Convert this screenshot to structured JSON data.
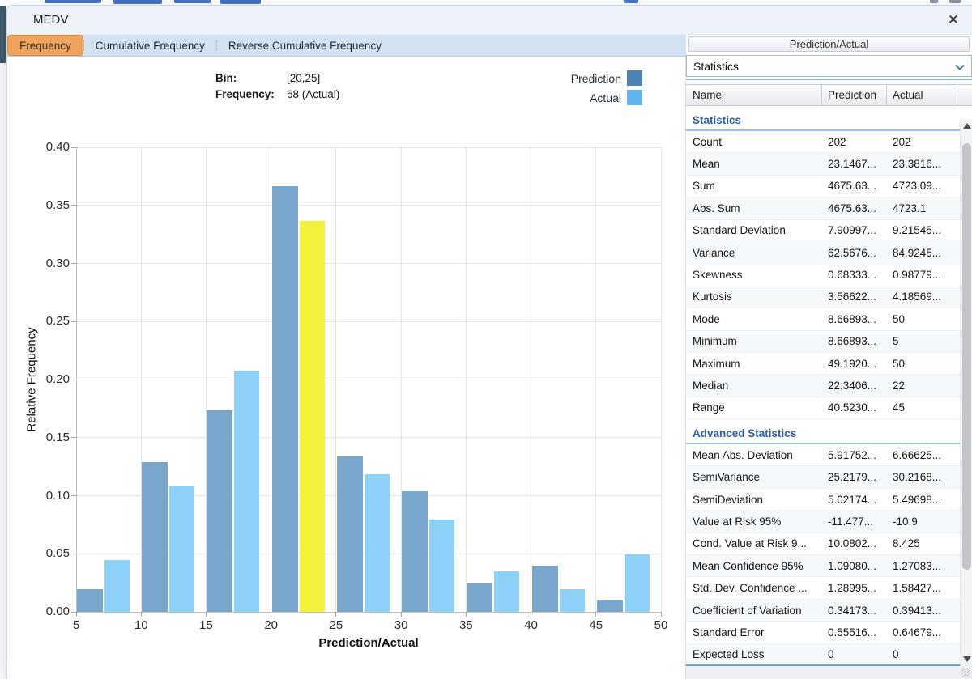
{
  "window": {
    "title": "MEDV",
    "close_glyph": "✕"
  },
  "tabs": [
    {
      "label": "Frequency",
      "selected": true
    },
    {
      "label": "Cumulative Frequency",
      "selected": false
    },
    {
      "label": "Reverse Cumulative Frequency",
      "selected": false
    }
  ],
  "tooltip": {
    "bin_label": "Bin:",
    "bin_value": "[20,25]",
    "freq_label": "Frequency:",
    "freq_value": "68 (Actual)"
  },
  "legend": [
    {
      "label": "Prediction",
      "color": "#4d82b4"
    },
    {
      "label": "Actual",
      "color": "#60b4f2"
    }
  ],
  "chart_data": {
    "type": "bar",
    "title": "",
    "xlabel": "Prediction/Actual",
    "ylabel": "Relative Frequency",
    "xlim": [
      5,
      50
    ],
    "ylim": [
      0,
      0.4
    ],
    "x_ticks": [
      5,
      10,
      15,
      20,
      25,
      30,
      35,
      40,
      45,
      50
    ],
    "y_ticks": [
      0.0,
      0.05,
      0.1,
      0.15,
      0.2,
      0.25,
      0.3,
      0.35,
      0.4
    ],
    "grid": true,
    "bins": [
      [
        5,
        10
      ],
      [
        10,
        15
      ],
      [
        15,
        20
      ],
      [
        20,
        25
      ],
      [
        25,
        30
      ],
      [
        30,
        35
      ],
      [
        35,
        40
      ],
      [
        40,
        45
      ],
      [
        45,
        50
      ]
    ],
    "series": [
      {
        "name": "Prediction",
        "color": "#78a6cc",
        "values": [
          0.0198,
          0.1287,
          0.1733,
          0.3663,
          0.1337,
          0.104,
          0.0248,
          0.0396,
          0.0099
        ]
      },
      {
        "name": "Actual",
        "color": "#8ed1f8",
        "values": [
          0.0446,
          0.1089,
          0.2079,
          0.3366,
          0.1188,
          0.0792,
          0.0347,
          0.0198,
          0.0495
        ]
      }
    ],
    "highlight": {
      "series": "Actual",
      "bin": [
        20,
        25
      ],
      "bin_index": 3,
      "value": 0.3366,
      "frequency": 68,
      "color": "#f2f23a"
    }
  },
  "panel": {
    "header": "Prediction/Actual",
    "dropdown_value": "Statistics",
    "columns": [
      "Name",
      "Prediction",
      "Actual"
    ],
    "sections": [
      {
        "title": "Statistics",
        "rows": [
          [
            "Count",
            "202",
            "202"
          ],
          [
            "Mean",
            "23.1467...",
            "23.3816..."
          ],
          [
            "Sum",
            "4675.63...",
            "4723.09..."
          ],
          [
            "Abs. Sum",
            "4675.63...",
            "4723.1"
          ],
          [
            "Standard Deviation",
            "7.90997...",
            "9.21545..."
          ],
          [
            "Variance",
            "62.5676...",
            "84.9245..."
          ],
          [
            "Skewness",
            "0.68333...",
            "0.98779..."
          ],
          [
            "Kurtosis",
            "3.56622...",
            "4.18569..."
          ],
          [
            "Mode",
            "8.66893...",
            "50"
          ],
          [
            "Minimum",
            "8.66893...",
            "5"
          ],
          [
            "Maximum",
            "49.1920...",
            "50"
          ],
          [
            "Median",
            "22.3406...",
            "22"
          ],
          [
            "Range",
            "40.5230...",
            "45"
          ]
        ]
      },
      {
        "title": "Advanced Statistics",
        "rows": [
          [
            "Mean Abs. Deviation",
            "5.91752...",
            "6.66625..."
          ],
          [
            "SemiVariance",
            "25.2179...",
            "30.2168..."
          ],
          [
            "SemiDeviation",
            "5.02174...",
            "5.49698..."
          ],
          [
            "Value at Risk 95%",
            "-11.477...",
            "-10.9"
          ],
          [
            "Cond. Value at Risk 9...",
            "10.0802...",
            "8.425"
          ],
          [
            "Mean Confidence 95%",
            "1.09080...",
            "1.27083..."
          ],
          [
            "Std. Dev. Confidence ...",
            "1.28995...",
            "1.58427..."
          ],
          [
            "Coefficient of Variation",
            "0.34173...",
            "0.39413..."
          ],
          [
            "Standard Error",
            "0.55516...",
            "0.64679..."
          ],
          [
            "Expected Loss",
            "0",
            "0"
          ]
        ]
      }
    ]
  }
}
